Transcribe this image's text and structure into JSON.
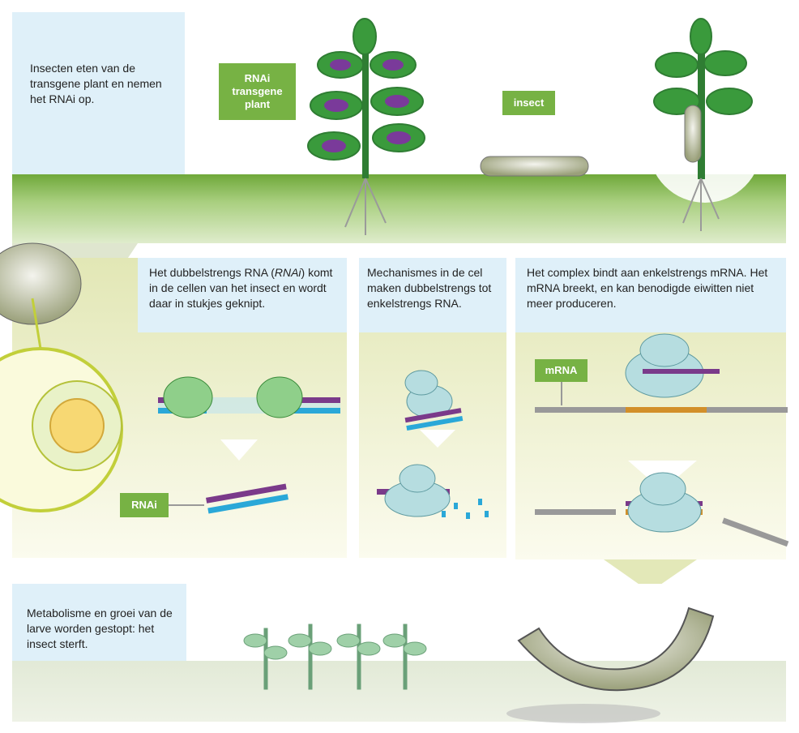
{
  "panel_1": {
    "text": "Insecten eten van de transgene plant en nemen het RNAi op.",
    "label_plant": "RNAi transgene plant",
    "label_insect": "insect"
  },
  "panel_2": {
    "text_before": "Het dubbelstrengs RNA (",
    "text_italic": "RNAi",
    "text_after": ") komt in de cellen van het insect en wordt daar in stukjes geknipt.",
    "label_rnai": "RNAi"
  },
  "panel_3": {
    "text": "Mechanismes in de cel maken dubbelstrengs tot enkelstrengs RNA."
  },
  "panel_4": {
    "text": "Het complex bindt aan enkelstrengs mRNA. Het mRNA breekt, en kan benodigde eiwitten niet meer produceren.",
    "label_mrna": "mRNA"
  },
  "panel_5": {
    "text": "Metabolisme en groei van de larve worden gestopt: het insect sterft."
  }
}
